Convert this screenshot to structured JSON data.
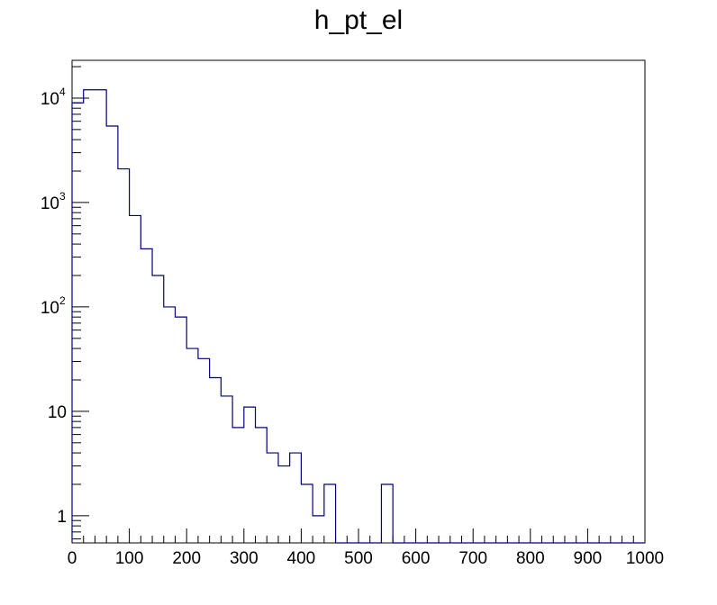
{
  "chart_data": {
    "type": "histogram",
    "title": "h_pt_el",
    "xlabel": "",
    "ylabel": "",
    "xlim": [
      0,
      1000
    ],
    "ylim": [
      0.55,
      23000
    ],
    "y_scale": "log",
    "grid": false,
    "legend": "none",
    "line_color": "#000080",
    "bin_edges": [
      0,
      20,
      40,
      60,
      80,
      100,
      120,
      140,
      160,
      180,
      200,
      220,
      240,
      260,
      280,
      300,
      320,
      340,
      360,
      380,
      400,
      420,
      440,
      460,
      480,
      500,
      520,
      540,
      560,
      580,
      600,
      620,
      640,
      660,
      680,
      700,
      720,
      740,
      760,
      780,
      800,
      820,
      840,
      860,
      880,
      900,
      920,
      940,
      960,
      980,
      1000
    ],
    "values": [
      9000,
      12000,
      12000,
      5400,
      2100,
      750,
      360,
      200,
      100,
      80,
      40,
      32,
      21,
      14,
      7,
      11,
      7,
      4,
      3,
      4,
      2,
      1,
      2,
      0,
      0,
      0,
      0,
      2,
      0,
      0,
      0,
      0,
      0,
      0,
      0,
      0,
      0,
      0,
      0,
      0,
      0,
      0,
      0,
      0,
      0,
      0,
      0,
      0,
      0,
      0
    ],
    "x_tick_labels": [
      "0",
      "100",
      "200",
      "300",
      "400",
      "500",
      "600",
      "700",
      "800",
      "900",
      "1000"
    ],
    "y_tick_labels": [
      {
        "value": 1,
        "text": "1"
      },
      {
        "value": 10,
        "text": "10"
      },
      {
        "value": 100,
        "base": "10",
        "exp": "2"
      },
      {
        "value": 1000,
        "base": "10",
        "exp": "3"
      },
      {
        "value": 10000,
        "base": "10",
        "exp": "4"
      }
    ]
  }
}
